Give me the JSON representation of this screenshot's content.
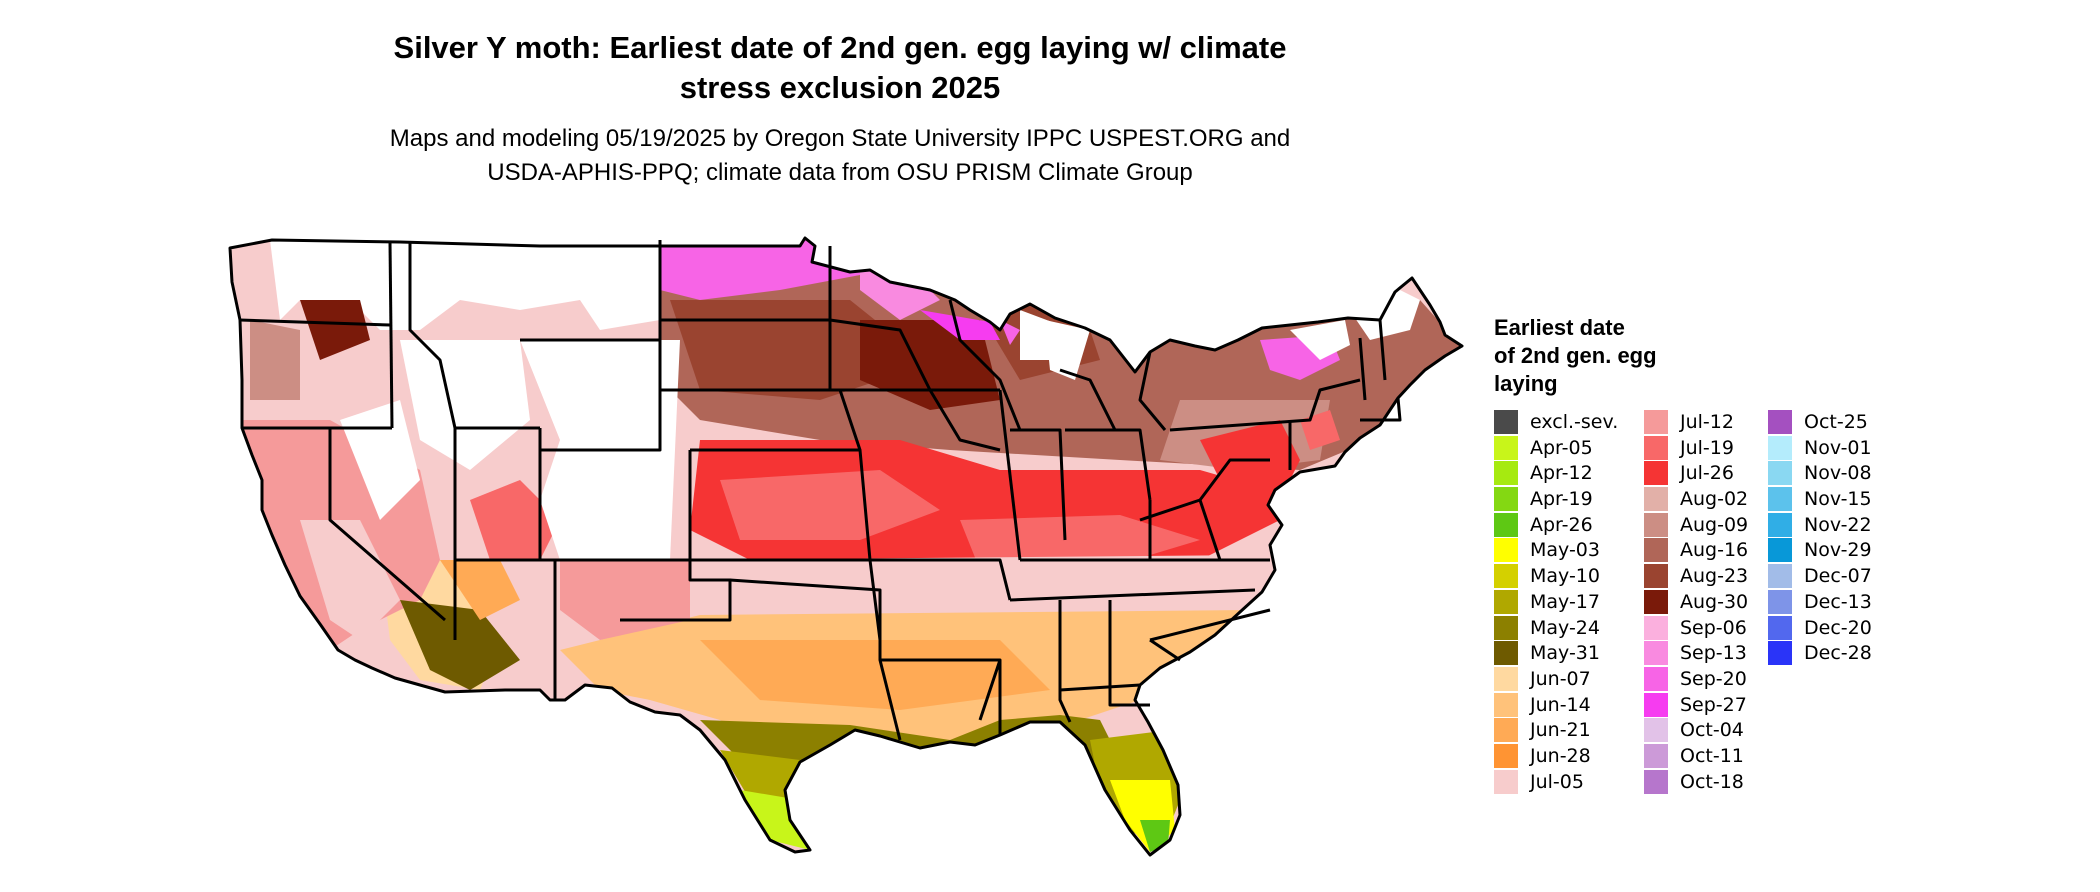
{
  "title": {
    "line1": "Silver Y moth: Earliest date of 2nd gen. egg laying w/ climate",
    "line2": "stress exclusion 2025"
  },
  "subtitle": {
    "line1": "Maps and modeling 05/19/2025 by Oregon State University IPPC USPEST.ORG and",
    "line2": "USDA-APHIS-PPQ; climate data from OSU PRISM Climate Group"
  },
  "legend": {
    "title_lines": [
      "Earliest date",
      "of 2nd gen. egg",
      "laying"
    ],
    "columns": [
      [
        {
          "label": "excl.-sev.",
          "color": "#4a4a4a"
        },
        {
          "label": "Apr-05",
          "color": "#c8f51a"
        },
        {
          "label": "Apr-12",
          "color": "#a6ea10"
        },
        {
          "label": "Apr-19",
          "color": "#84d812"
        },
        {
          "label": "Apr-26",
          "color": "#5ec814"
        },
        {
          "label": "May-03",
          "color": "#ffff00"
        },
        {
          "label": "May-10",
          "color": "#d4d000"
        },
        {
          "label": "May-17",
          "color": "#b0a800"
        },
        {
          "label": "May-24",
          "color": "#8c8000"
        },
        {
          "label": "May-31",
          "color": "#6e5a00"
        },
        {
          "label": "Jun-07",
          "color": "#ffd9a0"
        },
        {
          "label": "Jun-14",
          "color": "#ffc27a"
        },
        {
          "label": "Jun-21",
          "color": "#ffaa55"
        },
        {
          "label": "Jun-28",
          "color": "#ff9433"
        },
        {
          "label": "Jul-05",
          "color": "#f7cccc"
        }
      ],
      [
        {
          "label": "Jul-12",
          "color": "#f59a9a"
        },
        {
          "label": "Jul-19",
          "color": "#f86868"
        },
        {
          "label": "Jul-26",
          "color": "#f53434"
        },
        {
          "label": "Aug-02",
          "color": "#e2b0a8"
        },
        {
          "label": "Aug-09",
          "color": "#cc8e84"
        },
        {
          "label": "Aug-16",
          "color": "#b06658"
        },
        {
          "label": "Aug-23",
          "color": "#9a4430"
        },
        {
          "label": "Aug-30",
          "color": "#7a1a0a"
        },
        {
          "label": "Sep-06",
          "color": "#fbb0de"
        },
        {
          "label": "Sep-13",
          "color": "#f98ae0"
        },
        {
          "label": "Sep-20",
          "color": "#f764e6"
        },
        {
          "label": "Sep-27",
          "color": "#f63cf0"
        },
        {
          "label": "Oct-04",
          "color": "#e2c2e8"
        },
        {
          "label": "Oct-11",
          "color": "#cc9ad8"
        },
        {
          "label": "Oct-18",
          "color": "#b676cc"
        }
      ],
      [
        {
          "label": "Oct-25",
          "color": "#a450c0"
        },
        {
          "label": "Nov-01",
          "color": "#b4ecfc"
        },
        {
          "label": "Nov-08",
          "color": "#8ad8f2"
        },
        {
          "label": "Nov-15",
          "color": "#5cc2ec"
        },
        {
          "label": "Nov-22",
          "color": "#30aee6"
        },
        {
          "label": "Nov-29",
          "color": "#0898d8"
        },
        {
          "label": "Dec-07",
          "color": "#a2bce8"
        },
        {
          "label": "Dec-13",
          "color": "#7e94e8"
        },
        {
          "label": "Dec-20",
          "color": "#5268ee"
        },
        {
          "label": "Dec-28",
          "color": "#2a34f8"
        }
      ]
    ]
  }
}
